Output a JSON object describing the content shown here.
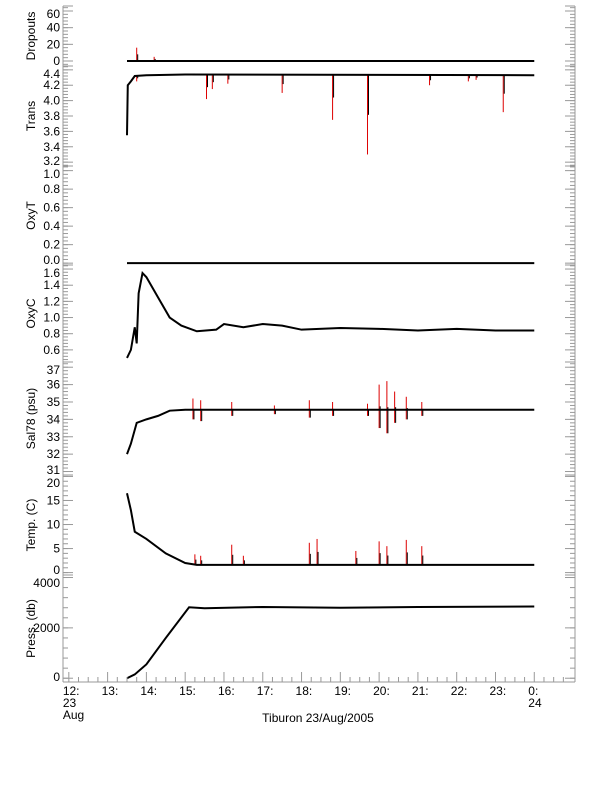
{
  "chart_data": {
    "type": "line",
    "title": "Tiburon 23/Aug/2005",
    "xlabel": "",
    "xlim": [
      11.85,
      25.05
    ],
    "x_ticks": [
      {
        "v": 12,
        "l": [
          "12:",
          "23",
          "Aug"
        ]
      },
      {
        "v": 13,
        "l": [
          "13:"
        ]
      },
      {
        "v": 14,
        "l": [
          "14:"
        ]
      },
      {
        "v": 15,
        "l": [
          "15:"
        ]
      },
      {
        "v": 16,
        "l": [
          "16:"
        ]
      },
      {
        "v": 17,
        "l": [
          "17:"
        ]
      },
      {
        "v": 18,
        "l": [
          "18:"
        ]
      },
      {
        "v": 19,
        "l": [
          "19:"
        ]
      },
      {
        "v": 20,
        "l": [
          "20:"
        ]
      },
      {
        "v": 21,
        "l": [
          "21:"
        ]
      },
      {
        "v": 22,
        "l": [
          "22:"
        ]
      },
      {
        "v": 23,
        "l": [
          "23:"
        ]
      },
      {
        "v": 24,
        "l": [
          "0:",
          "24"
        ]
      }
    ],
    "panels": [
      {
        "ylabel": "Dropouts",
        "ylim": [
          -6,
          66
        ],
        "ticks": [
          "0",
          "20",
          "40",
          "60"
        ],
        "tickvals": [
          0,
          20,
          40,
          60
        ],
        "series": [
          [
            13.5,
            0
          ],
          [
            24,
            0
          ]
        ],
        "spikes": [
          [
            13.75,
            0,
            16
          ],
          [
            14.2,
            0,
            5
          ]
        ]
      },
      {
        "ylabel": "Trans",
        "ylim": [
          3.15,
          4.45
        ],
        "ticks": [
          "3.2",
          "3.4",
          "3.6",
          "3.8",
          "4.0",
          "4.2",
          "4.4"
        ],
        "tickvals": [
          3.2,
          3.4,
          3.6,
          3.8,
          4.0,
          4.2,
          4.4
        ],
        "series": [
          [
            13.5,
            3.55
          ],
          [
            13.52,
            4.2
          ],
          [
            13.6,
            4.25
          ],
          [
            13.7,
            4.32
          ],
          [
            14,
            4.33
          ],
          [
            15,
            4.34
          ],
          [
            24,
            4.33
          ]
        ],
        "spikes": [
          [
            13.75,
            4.33,
            4.25
          ],
          [
            15.55,
            4.33,
            4.02
          ],
          [
            15.7,
            4.33,
            4.15
          ],
          [
            16.1,
            4.33,
            4.22
          ],
          [
            17.5,
            4.33,
            4.1
          ],
          [
            18.8,
            4.33,
            3.75
          ],
          [
            19.7,
            4.33,
            3.3
          ],
          [
            21.3,
            4.33,
            4.2
          ],
          [
            22.3,
            4.33,
            4.25
          ],
          [
            22.5,
            4.33,
            4.27
          ],
          [
            23.2,
            4.33,
            3.85
          ]
        ]
      },
      {
        "ylabel": "OxyT",
        "ylim": [
          -0.02,
          1.05
        ],
        "ticks": [
          "0.0",
          "0.2",
          "0.4",
          "0.6",
          "0.8",
          "1.0"
        ],
        "tickvals": [
          0,
          0.2,
          0.4,
          0.6,
          0.8,
          1.0
        ],
        "series": [
          [
            13.5,
            0
          ],
          [
            24,
            0
          ]
        ],
        "spikes": []
      },
      {
        "ylabel": "OxyC",
        "ylim": [
          0.45,
          1.65
        ],
        "ticks": [
          "0.6",
          "0.8",
          "1.0",
          "1.2",
          "1.4",
          "1.6"
        ],
        "tickvals": [
          0.6,
          0.8,
          1.0,
          1.2,
          1.4,
          1.6
        ],
        "series": [
          [
            13.5,
            0.5
          ],
          [
            13.6,
            0.6
          ],
          [
            13.7,
            0.88
          ],
          [
            13.75,
            0.68
          ],
          [
            13.8,
            1.3
          ],
          [
            13.9,
            1.55
          ],
          [
            14.0,
            1.5
          ],
          [
            14.3,
            1.25
          ],
          [
            14.6,
            1.0
          ],
          [
            14.9,
            0.9
          ],
          [
            15.3,
            0.83
          ],
          [
            15.8,
            0.85
          ],
          [
            16.0,
            0.92
          ],
          [
            16.5,
            0.88
          ],
          [
            17.0,
            0.92
          ],
          [
            17.5,
            0.9
          ],
          [
            18,
            0.85
          ],
          [
            19,
            0.87
          ],
          [
            20,
            0.86
          ],
          [
            21,
            0.84
          ],
          [
            22,
            0.86
          ],
          [
            23,
            0.84
          ],
          [
            24,
            0.84
          ]
        ],
        "spikes": []
      },
      {
        "ylabel": "Sal78 (psu)",
        "ylim": [
          30.8,
          37.3
        ],
        "ticks": [
          "31",
          "32",
          "33",
          "34",
          "35",
          "36",
          "37"
        ],
        "tickvals": [
          31,
          32,
          33,
          34,
          35,
          36,
          37
        ],
        "series": [
          [
            13.5,
            32
          ],
          [
            13.6,
            32.6
          ],
          [
            13.75,
            33.8
          ],
          [
            14,
            34
          ],
          [
            14.3,
            34.2
          ],
          [
            14.6,
            34.5
          ],
          [
            15,
            34.55
          ],
          [
            24,
            34.55
          ]
        ],
        "spikes": [
          [
            15.2,
            34,
            35.2
          ],
          [
            15.4,
            33.9,
            35.1
          ],
          [
            16.2,
            34.2,
            35.0
          ],
          [
            17.3,
            34.3,
            34.8
          ],
          [
            18.2,
            34.1,
            35.1
          ],
          [
            18.8,
            34.2,
            35.0
          ],
          [
            19.7,
            34.2,
            34.9
          ],
          [
            20.0,
            33.5,
            36.0
          ],
          [
            20.2,
            33.2,
            36.2
          ],
          [
            20.4,
            33.8,
            35.6
          ],
          [
            20.7,
            34.0,
            35.3
          ],
          [
            21.1,
            34.2,
            35.0
          ]
        ]
      },
      {
        "ylabel": "Temp. (C)",
        "ylim": [
          -0.5,
          20.3
        ],
        "ticks": [
          "0",
          "5",
          "10",
          "15",
          "20"
        ],
        "tickvals": [
          0,
          5,
          10,
          15,
          20
        ],
        "series": [
          [
            13.5,
            16.5
          ],
          [
            13.6,
            13
          ],
          [
            13.7,
            8.5
          ],
          [
            14,
            7
          ],
          [
            14.5,
            4
          ],
          [
            15,
            2
          ],
          [
            15.3,
            1.6
          ],
          [
            24,
            1.6
          ]
        ],
        "spikes": [
          [
            15.25,
            1.6,
            3.8
          ],
          [
            15.4,
            1.6,
            3.5
          ],
          [
            16.2,
            1.6,
            5.8
          ],
          [
            16.5,
            1.6,
            3.5
          ],
          [
            18.2,
            1.6,
            6.2
          ],
          [
            18.4,
            1.6,
            7
          ],
          [
            19.4,
            1.6,
            4.5
          ],
          [
            20.0,
            1.6,
            6.5
          ],
          [
            20.2,
            1.6,
            5.5
          ],
          [
            20.7,
            1.6,
            6.8
          ],
          [
            21.1,
            1.6,
            5.5
          ]
        ]
      },
      {
        "ylabel": "Press. (db)",
        "ylim": [
          -150,
          4100
        ],
        "ticks": [
          "0",
          "2000",
          "4000"
        ],
        "tickvals": [
          0,
          2000,
          4000
        ],
        "series": [
          [
            13.5,
            0
          ],
          [
            13.7,
            150
          ],
          [
            14.0,
            550
          ],
          [
            14.5,
            1600
          ],
          [
            15.1,
            2820
          ],
          [
            15.5,
            2780
          ],
          [
            17,
            2830
          ],
          [
            19,
            2800
          ],
          [
            21,
            2830
          ],
          [
            24,
            2850
          ]
        ],
        "spikes": []
      }
    ]
  },
  "colors": {
    "line": "#000000",
    "noise": "#dd0000",
    "axis": "#999999"
  }
}
